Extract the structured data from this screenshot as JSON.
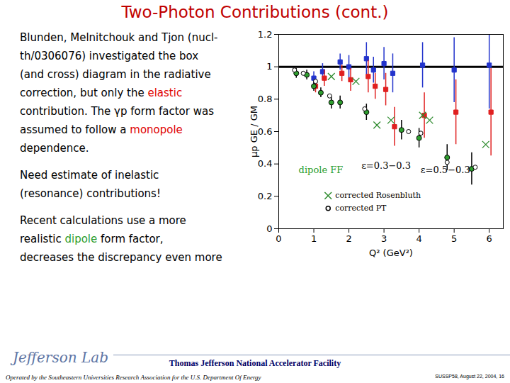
{
  "title": "Two-Photon Contributions (cont.)",
  "paragraphs": [
    [
      [
        {
          "text": "Blunden, Melnitchouk and Tjon (nucl-"
        }
      ],
      [
        {
          "text": "th/0306076) investigated the box"
        }
      ],
      [
        {
          "text": "(and cross) diagram in the radiative"
        }
      ],
      [
        {
          "text": "correction, but only the "
        },
        {
          "text": "elastic",
          "color": "#e00000"
        }
      ],
      [
        {
          "text": "contribution. The γp form factor was"
        }
      ],
      [
        {
          "text": "assumed to follow a "
        },
        {
          "text": "monopole",
          "color": "#e00000"
        }
      ],
      [
        {
          "text": "dependence."
        }
      ]
    ],
    [
      [
        {
          "text": "Need estimate of inelastic"
        }
      ],
      [
        {
          "text": "(resonance) contributions!"
        }
      ]
    ],
    [
      [
        {
          "text": "Recent calculations use a more"
        }
      ],
      [
        {
          "text": "realistic "
        },
        {
          "text": "dipole",
          "color": "#2e9e2e"
        },
        {
          "text": " form factor,"
        }
      ],
      [
        {
          "text": "decreases the discrepancy even more"
        }
      ]
    ]
  ],
  "footer": {
    "logo": "Jefferson Lab",
    "center": "Thomas Jefferson National Accelerator Facility",
    "left": "Operated by the Southeastern Universities Research Association for the U.S. Department Of Energy",
    "right": "SUSSP58, August 22, 2004, 16"
  },
  "chart_data": {
    "type": "scatter",
    "x_label": "Q² (GeV²)",
    "y_label": "μp GE / GM",
    "xlim": [
      0,
      6.4
    ],
    "ylim": [
      0,
      1.2
    ],
    "xticks": [
      0,
      1,
      2,
      3,
      4,
      5,
      6
    ],
    "yticks": [
      0,
      0.2,
      0.4,
      0.6,
      0.8,
      1,
      1.2
    ],
    "reference_y": 1,
    "legend": "bottom-left",
    "series": [
      {
        "color": "#2233cc",
        "marker": "square",
        "x": [
          1.0,
          1.25,
          1.75,
          2.0,
          2.5,
          2.7,
          3.0,
          3.25,
          4.1,
          5.0,
          6.0
        ],
        "values": [
          0.93,
          0.97,
          1.03,
          1.0,
          1.05,
          0.98,
          1.02,
          0.96,
          1.01,
          0.98,
          1.01
        ],
        "errors": [
          0.04,
          0.05,
          0.05,
          0.07,
          0.1,
          0.08,
          0.1,
          0.12,
          0.14,
          0.2,
          0.27
        ]
      },
      {
        "color": "#e02020",
        "marker": "square",
        "x": [
          1.05,
          1.3,
          1.8,
          2.05,
          2.55,
          2.75,
          3.05,
          3.3,
          4.15,
          5.05,
          6.05
        ],
        "values": [
          0.88,
          0.93,
          0.96,
          0.92,
          0.94,
          0.88,
          0.86,
          0.63,
          0.7,
          0.72,
          0.72
        ],
        "errors": [
          0.04,
          0.05,
          0.05,
          0.07,
          0.1,
          0.08,
          0.1,
          0.12,
          0.14,
          0.2,
          0.27
        ]
      },
      {
        "color": "#2e9e2e",
        "marker": "circle",
        "x": [
          0.5,
          0.8,
          1.0,
          1.2,
          1.5,
          1.75,
          2.5,
          3.5,
          4.0,
          4.8,
          5.5
        ],
        "values": [
          0.96,
          0.95,
          0.88,
          0.84,
          0.78,
          0.78,
          0.72,
          0.61,
          0.56,
          0.44,
          0.37
        ],
        "errors": [
          0.03,
          0.03,
          0.03,
          0.03,
          0.04,
          0.04,
          0.05,
          0.06,
          0.06,
          0.08,
          0.1
        ]
      },
      {
        "name": "corrected Rosenbluth",
        "color": "#2e8b2e",
        "marker": "x",
        "x": [
          1.5,
          2.2,
          2.8,
          3.2,
          4.1,
          4.3,
          5.9
        ],
        "values": [
          0.94,
          0.91,
          0.64,
          0.67,
          0.7,
          0.67,
          0.52
        ]
      },
      {
        "name": "corrected PT",
        "color": "#2e8b2e",
        "marker": "open-circle",
        "x": [
          0.45,
          0.7,
          1.05,
          1.45,
          2.45,
          3.7,
          4.05,
          4.8,
          5.6
        ],
        "values": [
          0.98,
          0.96,
          0.91,
          0.82,
          0.74,
          0.6,
          0.59,
          0.41,
          0.38
        ]
      }
    ],
    "annotations": [
      {
        "text": "dipole FF",
        "x": 1.2,
        "y": 0.36,
        "color": "#2e9e2e"
      },
      {
        "text": "ε=0.3−0.3",
        "x": 3.06,
        "y": 0.39,
        "color": "#000000"
      },
      {
        "text": "ε=0.5−0.3",
        "x": 4.75,
        "y": 0.36,
        "color": "#000000"
      }
    ]
  }
}
